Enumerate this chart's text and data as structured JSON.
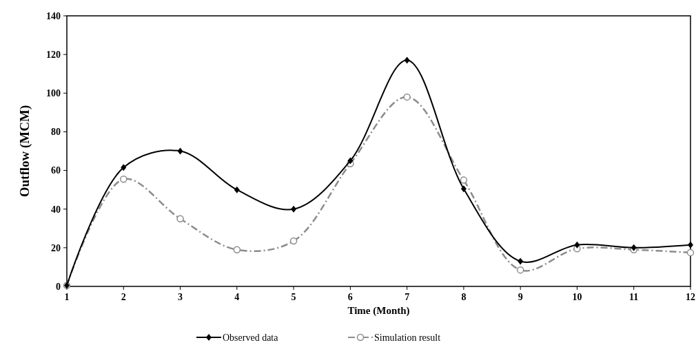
{
  "chart_data": {
    "type": "line",
    "xlabel": "Time (Month)",
    "ylabel": "Outflow (MCM)",
    "x": [
      1,
      2,
      3,
      4,
      5,
      6,
      7,
      8,
      9,
      10,
      11,
      12
    ],
    "xlim": [
      1,
      12
    ],
    "xticks": [
      1,
      2,
      3,
      4,
      5,
      6,
      7,
      8,
      9,
      10,
      11,
      12
    ],
    "ylim": [
      0,
      140
    ],
    "yticks": [
      0,
      20,
      40,
      60,
      80,
      100,
      120,
      140
    ],
    "grid": false,
    "legend": "bottom",
    "series": [
      {
        "name": "Observed data",
        "color": "#000000",
        "marker": "diamond",
        "line_style": "solid",
        "values": [
          0.5,
          61.5,
          70,
          50,
          40,
          65,
          117,
          50.5,
          13,
          21.5,
          20,
          21.5
        ]
      },
      {
        "name": "Simulation result",
        "color": "#8c8c8c",
        "marker": "circle",
        "line_style": "dashed",
        "values": [
          0.5,
          55.5,
          35,
          19,
          23.5,
          63.5,
          98,
          55,
          8.5,
          19.5,
          19,
          17.5
        ]
      }
    ]
  }
}
